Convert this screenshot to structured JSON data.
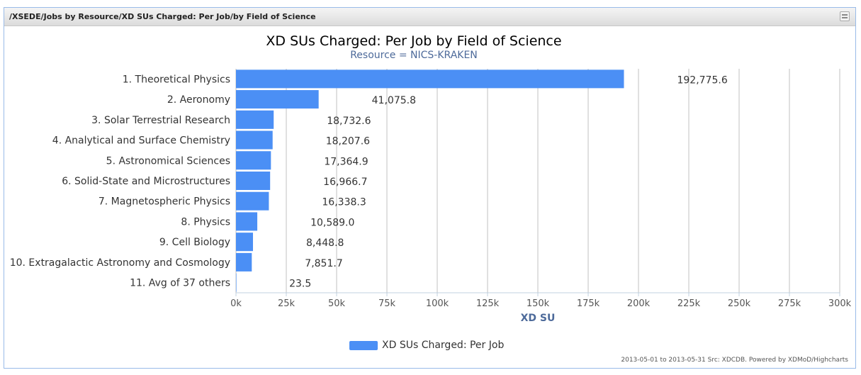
{
  "panel": {
    "title": "/XSEDE/Jobs by Resource/XD SUs Charged: Per Job/by Field of Science"
  },
  "footer": {
    "note": "2013-05-01 to 2013-05-31 Src: XDCDB. Powered by XDMoD/Highcharts"
  },
  "legend": {
    "label": "XD SUs Charged: Per Job"
  },
  "chart_data": {
    "type": "bar",
    "orientation": "horizontal",
    "title": "XD SUs Charged: Per Job by Field of Science",
    "subtitle": "Resource = NICS-KRAKEN",
    "xlabel": "XD SU",
    "xlim": [
      0,
      300000
    ],
    "ticks": [
      0,
      25000,
      50000,
      75000,
      100000,
      125000,
      150000,
      175000,
      200000,
      225000,
      250000,
      275000,
      300000
    ],
    "tick_labels": [
      "0k",
      "25k",
      "50k",
      "75k",
      "100k",
      "125k",
      "150k",
      "175k",
      "200k",
      "225k",
      "250k",
      "275k",
      "300k"
    ],
    "grid": true,
    "legend_position": "bottom-center",
    "bar_color": "#4b8ff5",
    "categories": [
      "1. Theoretical Physics",
      "2. Aeronomy",
      "3. Solar Terrestrial Research",
      "4. Analytical and Surface Chemistry",
      "5. Astronomical Sciences",
      "6. Solid-State and Microstructures",
      "7. Magnetospheric Physics",
      "8. Physics",
      "9. Cell Biology",
      "10. Extragalactic Astronomy and Cosmology",
      "11. Avg of 37 others"
    ],
    "values": [
      192775.6,
      41075.8,
      18732.6,
      18207.6,
      17364.9,
      16966.7,
      16338.3,
      10589.0,
      8448.8,
      7851.7,
      23.5
    ],
    "value_labels": [
      "192,775.6",
      "41,075.8",
      "18,732.6",
      "18,207.6",
      "17,364.9",
      "16,966.7",
      "16,338.3",
      "10,589.0",
      "8,448.8",
      "7,851.7",
      "23.5"
    ],
    "series": [
      {
        "name": "XD SUs Charged: Per Job"
      }
    ]
  }
}
